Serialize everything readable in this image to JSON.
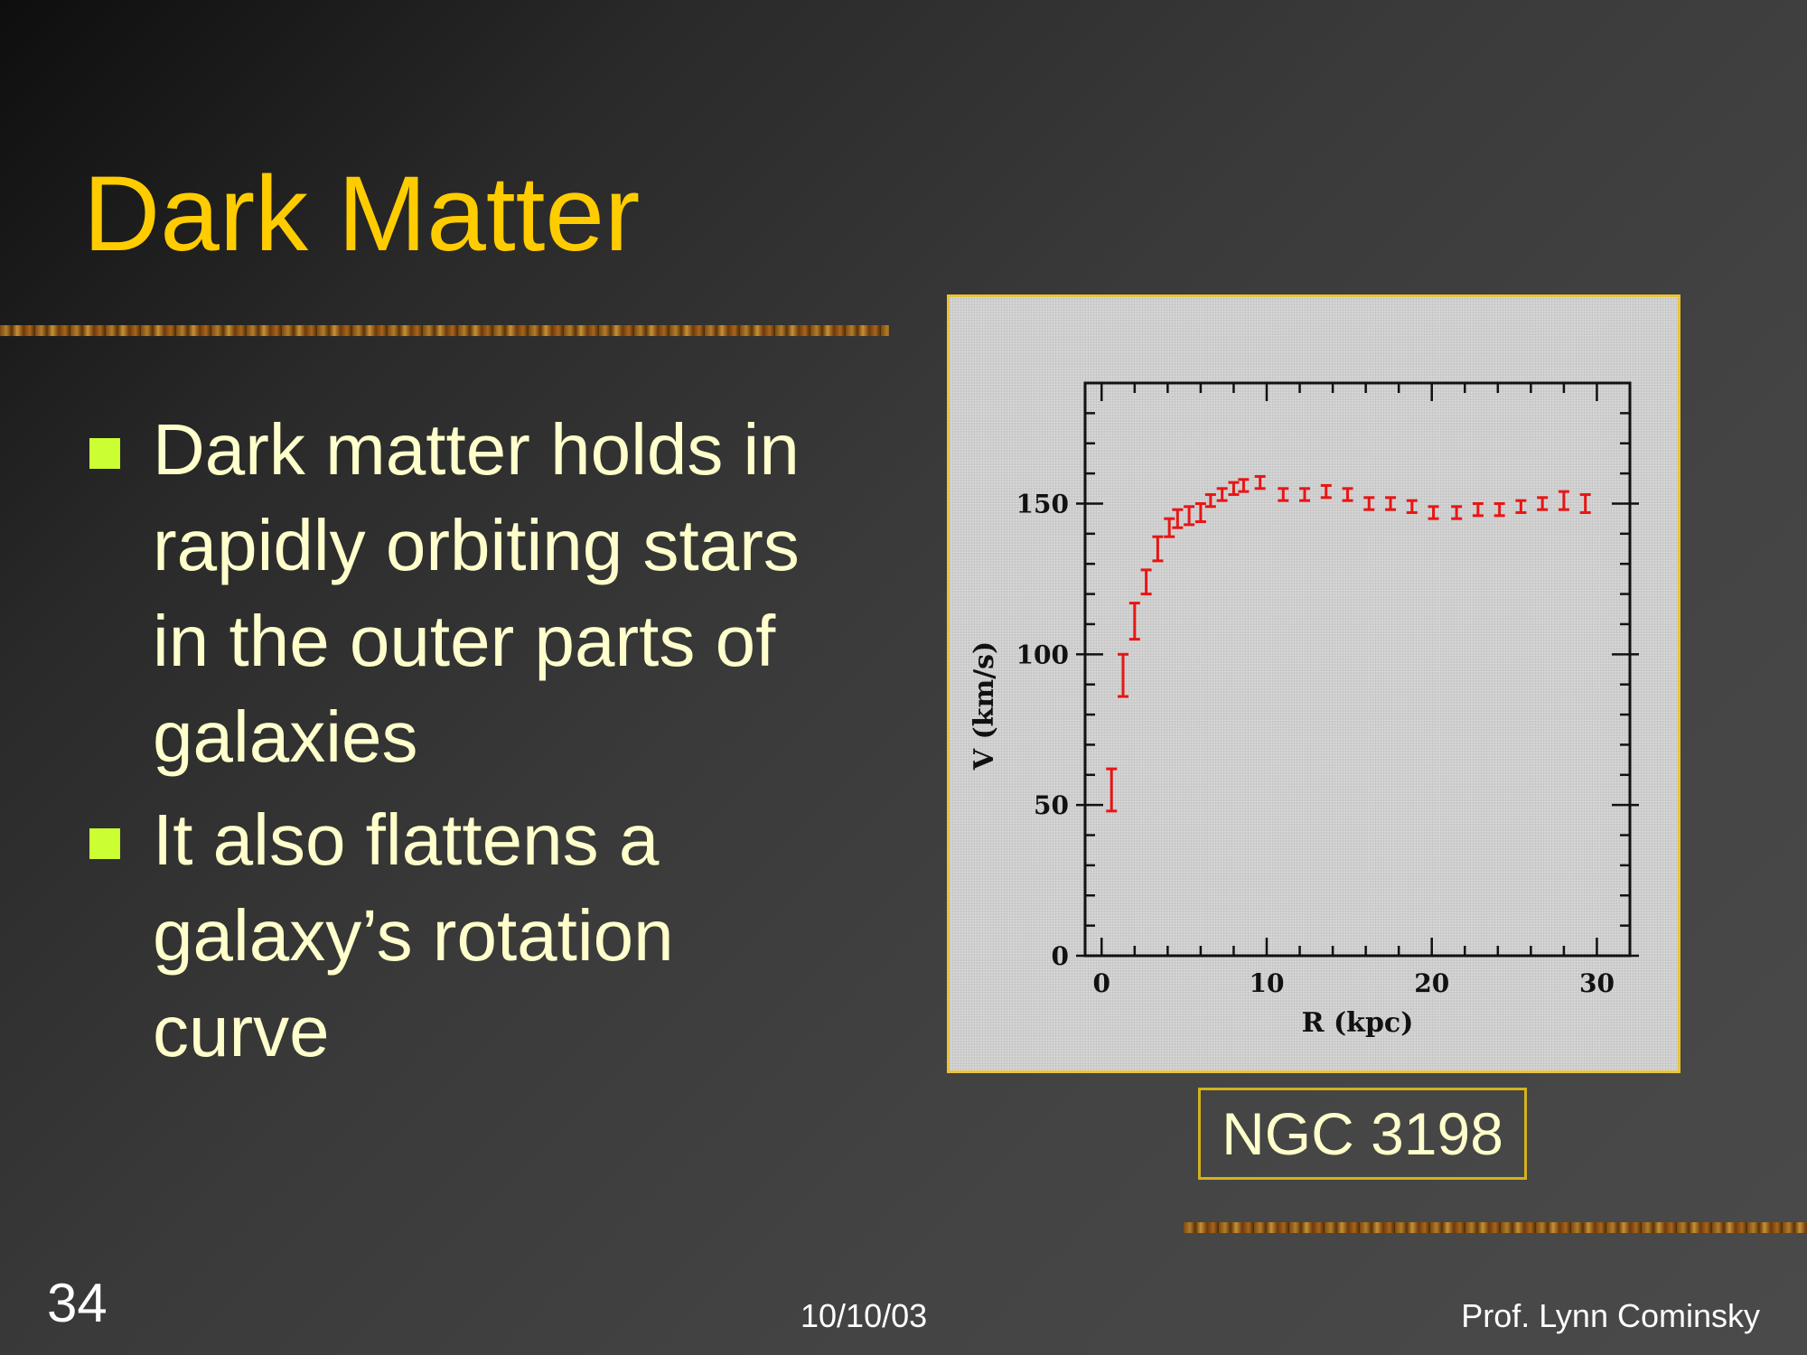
{
  "slide": {
    "title": "Dark Matter",
    "bullets": [
      "Dark matter holds in rapidly orbiting stars in the outer parts of galaxies",
      "It also flattens a galaxy’s rotation curve"
    ],
    "caption": "NGC 3198",
    "slide_number": "34",
    "date": "10/10/03",
    "author": "Prof. Lynn Cominsky",
    "colors": {
      "title": "#FFCC00",
      "text": "#FFFFCC",
      "bullet": "#CCFF33",
      "data_points": "#E81515"
    }
  },
  "chart_data": {
    "type": "scatter",
    "title": "",
    "xlabel": "R (kpc)",
    "ylabel": "V (km/s)",
    "xlim": [
      -1,
      32
    ],
    "ylim": [
      0,
      190
    ],
    "x_ticks": [
      0,
      10,
      20,
      30
    ],
    "y_ticks": [
      0,
      50,
      100,
      150
    ],
    "grid": false,
    "error_bars": true,
    "series": [
      {
        "x": [
          0.6,
          1.3,
          2.0,
          2.7,
          3.4,
          4.1,
          4.6,
          5.3,
          6.0,
          6.6,
          7.3,
          8.0,
          8.6,
          9.6,
          11.0,
          12.3,
          13.6,
          14.9,
          16.2,
          17.5,
          18.8,
          20.1,
          21.5,
          22.8,
          24.1,
          25.4,
          26.7,
          28.0,
          29.3
        ],
        "y": [
          55,
          93,
          111,
          124,
          135,
          142,
          145,
          146,
          147,
          151,
          153,
          155,
          156,
          157,
          153,
          153,
          154,
          153,
          150,
          150,
          149,
          147,
          147,
          148,
          148,
          149,
          150,
          151,
          150
        ],
        "yerr": [
          7,
          7,
          6,
          4,
          4,
          3,
          3,
          3,
          3,
          2,
          2,
          2,
          2,
          2,
          2,
          2,
          2,
          2,
          2,
          2,
          2,
          2,
          2,
          2,
          2,
          2,
          2,
          3,
          3
        ]
      }
    ]
  }
}
